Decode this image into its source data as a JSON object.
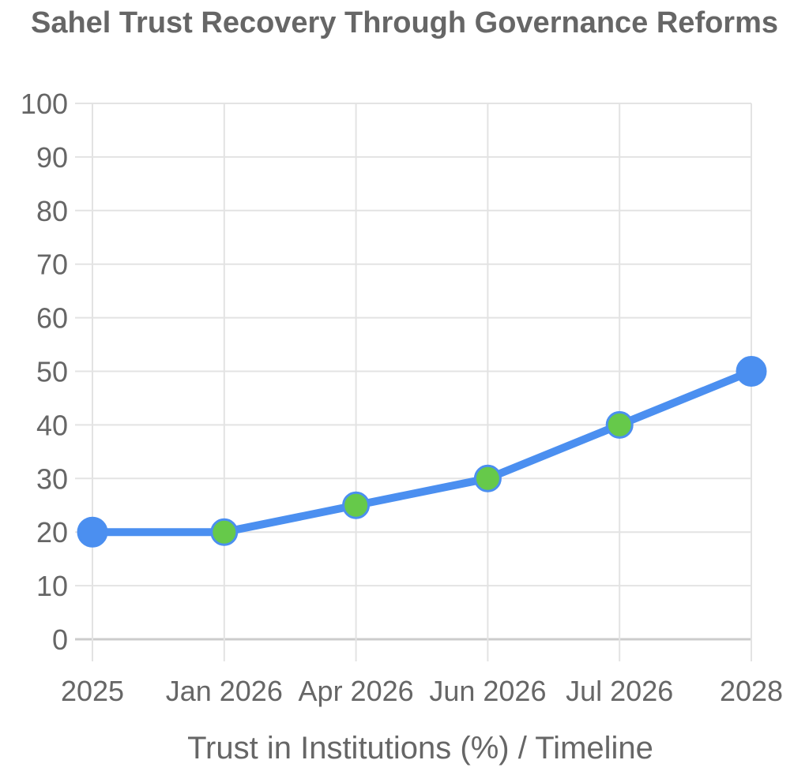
{
  "chart_data": {
    "type": "line",
    "title": "Sahel Trust Recovery Through Governance Reforms",
    "xlabel": "Trust in Institutions (%) / Timeline",
    "ylabel": "",
    "categories": [
      "2025",
      "Jan 2026",
      "Apr 2026",
      "Jun 2026",
      "Jul 2026",
      "2028"
    ],
    "series": [
      {
        "values": [
          20,
          20,
          25,
          30,
          40,
          50
        ],
        "line_color": "#4b8ff0",
        "point_colors": [
          "#4b8ff0",
          "#66c94a",
          "#66c94a",
          "#66c94a",
          "#66c94a",
          "#4b8ff0"
        ]
      }
    ],
    "ylim": [
      0,
      100
    ],
    "yticks": [
      0,
      10,
      20,
      30,
      40,
      50,
      60,
      70,
      80,
      90,
      100
    ],
    "grid": true,
    "legend": "none"
  }
}
